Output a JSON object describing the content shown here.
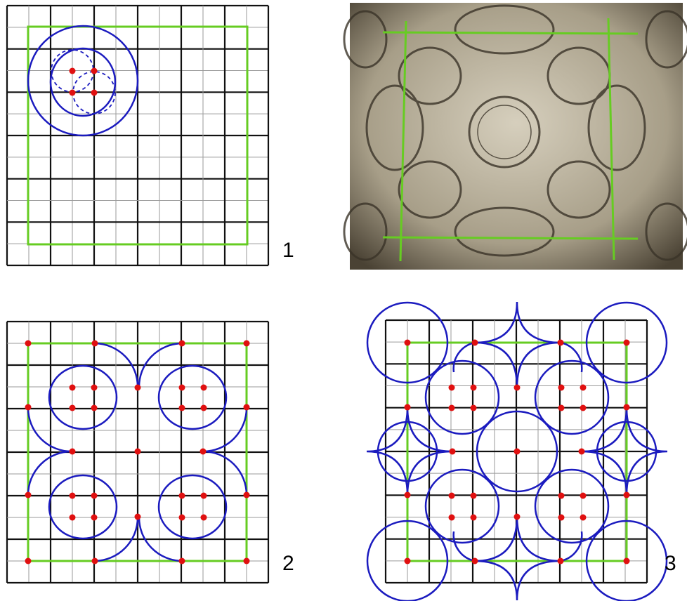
{
  "panels": [
    {
      "id": "1",
      "label": "1",
      "kind": "grid-construction-step"
    },
    {
      "id": "photo",
      "label": "",
      "kind": "mosaic-photo"
    },
    {
      "id": "2",
      "label": "2",
      "kind": "grid-construction-step"
    },
    {
      "id": "3",
      "label": "3",
      "kind": "grid-construction-step"
    }
  ],
  "colors": {
    "grid_thin": "#9a9a9a",
    "grid_thick": "#111111",
    "frame": "#66cc22",
    "curve": "#1b1bbf",
    "point": "#e01010",
    "mosaic_bg": "#8a8270",
    "mosaic_light": "#cfc7b3",
    "mosaic_dark": "#3a3328"
  },
  "icons": {
    "point": "red-dot",
    "mosaic": "photo-texture"
  }
}
